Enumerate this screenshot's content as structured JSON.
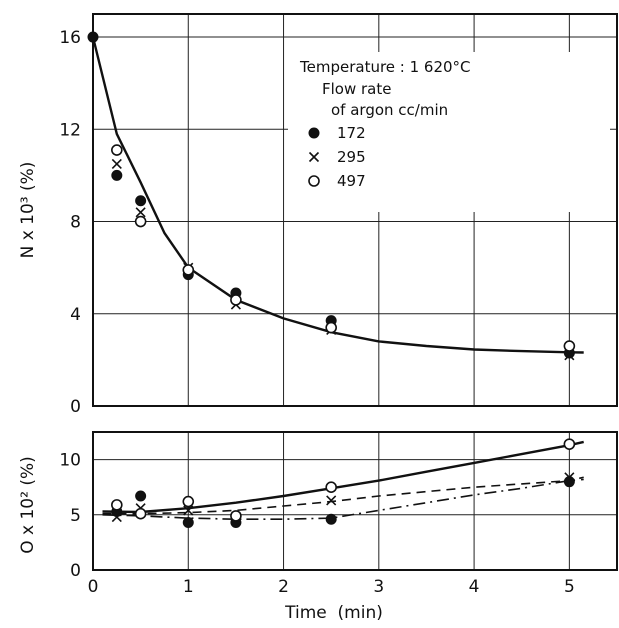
{
  "chart_data": [
    {
      "type": "scatter",
      "panel": "top",
      "ylabel": "N x 10³ (%)",
      "xlabel": "",
      "xlim": [
        0,
        5.5
      ],
      "ylim": [
        0,
        17
      ],
      "xticks": [
        "0",
        "1",
        "2",
        "3",
        "4",
        "5"
      ],
      "yticks": [
        "0",
        "4",
        "8",
        "12",
        "16"
      ],
      "grid": true,
      "legend": {
        "title_line1": "Temperature : 1 620°C",
        "title_line2": "Flow rate",
        "title_line3": "of argon cc/min",
        "placement": "top-right"
      },
      "series": [
        {
          "name": "172",
          "marker": "filled-circle",
          "x": [
            0,
            0.25,
            0.5,
            1.0,
            1.5,
            2.5,
            5.0
          ],
          "y": [
            16.0,
            10.0,
            8.9,
            5.7,
            4.9,
            3.7,
            2.3
          ]
        },
        {
          "name": "295",
          "marker": "cross",
          "x": [
            0.25,
            0.5,
            1.0,
            1.5,
            2.5,
            5.0
          ],
          "y": [
            10.5,
            8.4,
            6.0,
            4.4,
            3.3,
            2.2
          ]
        },
        {
          "name": "497",
          "marker": "open-circle",
          "x": [
            0.25,
            0.5,
            1.0,
            1.5,
            2.5,
            5.0
          ],
          "y": [
            11.1,
            8.0,
            5.9,
            4.6,
            3.4,
            2.6
          ]
        }
      ],
      "fit_curve": {
        "style": "solid",
        "x": [
          0,
          0.25,
          0.5,
          0.75,
          1,
          1.5,
          2,
          2.5,
          3,
          3.5,
          4,
          4.5,
          5,
          5.15
        ],
        "y": [
          16.0,
          11.8,
          9.7,
          7.5,
          6.0,
          4.6,
          3.8,
          3.2,
          2.8,
          2.6,
          2.45,
          2.38,
          2.33,
          2.32
        ]
      }
    },
    {
      "type": "scatter",
      "panel": "bottom",
      "ylabel": "O x 10² (%)",
      "xlabel": "Time  (min)",
      "xlim": [
        0,
        5.5
      ],
      "ylim": [
        0,
        12.5
      ],
      "xticks": [
        "0",
        "1",
        "2",
        "3",
        "4",
        "5"
      ],
      "yticks": [
        "0",
        "5",
        "10"
      ],
      "grid": true,
      "series": [
        {
          "name": "172",
          "marker": "filled-circle",
          "x": [
            0.25,
            0.5,
            1.0,
            1.5,
            2.5,
            5.0
          ],
          "y": [
            5.3,
            6.7,
            4.3,
            4.3,
            4.6,
            8.0
          ]
        },
        {
          "name": "295",
          "marker": "cross",
          "x": [
            0.25,
            0.5,
            1.0,
            1.5,
            2.5,
            5.0
          ],
          "y": [
            4.8,
            5.6,
            5.4,
            4.8,
            6.3,
            8.4
          ]
        },
        {
          "name": "497",
          "marker": "open-circle",
          "x": [
            0.25,
            0.5,
            1.0,
            1.5,
            2.5,
            5.0
          ],
          "y": [
            5.9,
            5.1,
            6.2,
            4.9,
            7.5,
            11.4
          ]
        }
      ],
      "fit_curves": [
        {
          "series": "497",
          "style": "solid",
          "x": [
            0.1,
            0.5,
            1,
            1.5,
            2,
            2.5,
            3,
            3.5,
            4,
            4.5,
            5,
            5.15
          ],
          "y": [
            5.3,
            5.25,
            5.6,
            6.1,
            6.7,
            7.4,
            8.1,
            8.9,
            9.7,
            10.5,
            11.3,
            11.6
          ]
        },
        {
          "series": "295",
          "style": "dashed",
          "x": [
            0.1,
            0.5,
            1,
            1.5,
            2,
            2.5,
            3,
            3.5,
            4,
            4.5,
            5,
            5.15
          ],
          "y": [
            5.1,
            5.1,
            5.2,
            5.4,
            5.8,
            6.2,
            6.7,
            7.1,
            7.5,
            7.8,
            8.1,
            8.2
          ]
        },
        {
          "series": "172",
          "style": "dash-dot",
          "x": [
            0.1,
            0.5,
            1,
            1.5,
            2,
            2.5,
            3,
            3.5,
            4,
            4.5,
            5,
            5.15
          ],
          "y": [
            5.0,
            4.9,
            4.7,
            4.6,
            4.6,
            4.7,
            5.4,
            6.1,
            6.8,
            7.4,
            8.1,
            8.4
          ]
        }
      ]
    }
  ]
}
